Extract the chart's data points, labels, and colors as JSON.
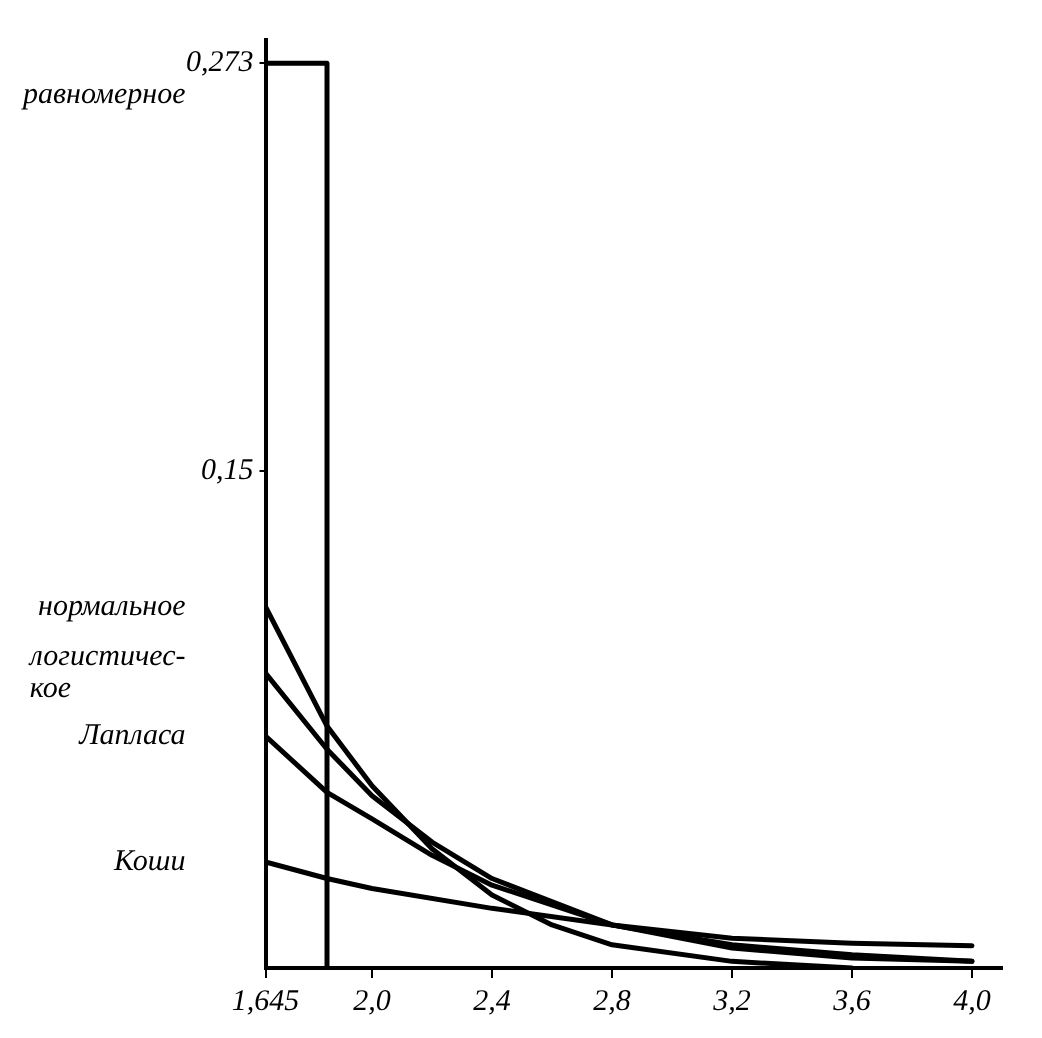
{
  "chart_data": {
    "type": "line",
    "marker": "none",
    "line_style": "solid",
    "grid": false,
    "legend": false,
    "xlim": [
      1.645,
      4.1
    ],
    "ylim": [
      0,
      0.28
    ],
    "xticks": [
      {
        "value": 1.645,
        "label": "1,645"
      },
      {
        "value": 2.0,
        "label": "2,0"
      },
      {
        "value": 2.4,
        "label": "2,4"
      },
      {
        "value": 2.8,
        "label": "2,8"
      },
      {
        "value": 3.2,
        "label": "3,2"
      },
      {
        "value": 3.6,
        "label": "3,6"
      },
      {
        "value": 4.0,
        "label": "4,0"
      }
    ],
    "yticks": [
      {
        "value": 0.15,
        "label": "0,15"
      },
      {
        "value": 0.273,
        "label": "0,273"
      }
    ],
    "series": [
      {
        "name": "равномерное",
        "color": "#000000",
        "x": [
          1.645,
          1.645,
          1.85,
          1.85
        ],
        "values": [
          0,
          0.273,
          0.273,
          0
        ]
      },
      {
        "name": "нормальное",
        "color": "#000000",
        "x": [
          1.645,
          1.85,
          2.0,
          2.2,
          2.4,
          2.6,
          2.8,
          3.2,
          3.6
        ],
        "values": [
          0.109,
          0.073,
          0.055,
          0.036,
          0.022,
          0.013,
          0.007,
          0.002,
          0
        ]
      },
      {
        "name": "логистичес-\nкое",
        "color": "#000000",
        "x": [
          1.645,
          1.85,
          2.0,
          2.2,
          2.4,
          2.8,
          3.2,
          3.6,
          4.0
        ],
        "values": [
          0.089,
          0.066,
          0.052,
          0.038,
          0.027,
          0.013,
          0.006,
          0.003,
          0.002
        ]
      },
      {
        "name": "Лапласа",
        "color": "#000000",
        "x": [
          1.645,
          1.85,
          2.0,
          2.2,
          2.4,
          2.8,
          3.2,
          3.6,
          4.0
        ],
        "values": [
          0.07,
          0.053,
          0.045,
          0.034,
          0.025,
          0.013,
          0.007,
          0.004,
          0.002
        ]
      },
      {
        "name": "Коши",
        "color": "#000000",
        "x": [
          1.645,
          1.85,
          2.0,
          2.4,
          2.8,
          3.2,
          3.6,
          4.0
        ],
        "values": [
          0.032,
          0.027,
          0.024,
          0.018,
          0.013,
          0.009,
          0.0075,
          0.0067
        ]
      }
    ]
  }
}
